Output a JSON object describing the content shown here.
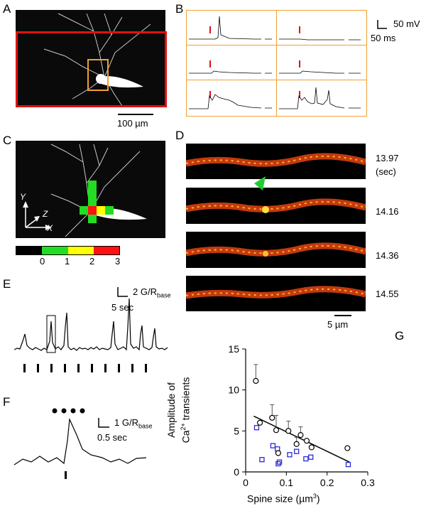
{
  "figure": {
    "panels": {
      "A": {
        "label": "A",
        "scale_bar": "100 µm"
      },
      "B": {
        "label": "B",
        "scale_v": "50 mV",
        "scale_h": "50 ms"
      },
      "C": {
        "label": "C",
        "axes": {
          "y": "Y",
          "z": "Z",
          "x": "X"
        },
        "colorbar_ticks": [
          "0",
          "1",
          "2",
          "3"
        ],
        "colors": {
          "black": "#000000",
          "green": "#22dd22",
          "yellow": "#ffff00",
          "red": "#ff1111"
        }
      },
      "D": {
        "label": "D",
        "times": [
          "13.97",
          "14.16",
          "14.36",
          "14.55"
        ],
        "time_unit": "(sec)",
        "scale_bar": "5 µm"
      },
      "E": {
        "label": "E",
        "scale_v": "2 G/R",
        "scale_v_sub": "base",
        "scale_h": "5 sec"
      },
      "F": {
        "label": "F",
        "scale_v": "1 G/R",
        "scale_v_sub": "base",
        "scale_h": "0.5 sec"
      },
      "G": {
        "label": "G",
        "ylabel_line1": "Amplitude of",
        "ylabel_line2_pre": "Ca",
        "ylabel_sup": "2+",
        "ylabel_line2_post": " transients",
        "xlabel_pre": "Spine size (µm",
        "xlabel_sup": "3",
        "xlabel_post": ")"
      }
    }
  },
  "chart_data": {
    "type": "scatter",
    "xlim": [
      0,
      0.3
    ],
    "ylim": [
      0,
      15
    ],
    "xticks": [
      "0",
      "0.1",
      "0.2",
      "0.3"
    ],
    "yticks": [
      "0",
      "5",
      "10",
      "15"
    ],
    "series": [
      {
        "name": "circles",
        "marker": "circle",
        "color": "#000000",
        "x": [
          0.025,
          0.035,
          0.065,
          0.075,
          0.08,
          0.105,
          0.125,
          0.135,
          0.15,
          0.162,
          0.25
        ],
        "y": [
          11.1,
          6.0,
          6.6,
          5.1,
          2.3,
          5.0,
          3.4,
          4.5,
          3.8,
          3.0,
          2.9
        ],
        "err": [
          2.0,
          0,
          1.6,
          1.8,
          0,
          1.2,
          0.8,
          1.0,
          0,
          0,
          0
        ]
      },
      {
        "name": "squares",
        "marker": "square",
        "color": "#2b2bd6",
        "x": [
          0.027,
          0.04,
          0.067,
          0.078,
          0.08,
          0.083,
          0.108,
          0.125,
          0.148,
          0.16,
          0.252
        ],
        "y": [
          5.4,
          1.5,
          3.2,
          2.8,
          1.0,
          1.2,
          2.1,
          2.5,
          1.6,
          1.8,
          0.9
        ]
      }
    ],
    "fit_line": {
      "x": [
        0.02,
        0.255
      ],
      "y": [
        6.8,
        1.2
      ]
    }
  }
}
